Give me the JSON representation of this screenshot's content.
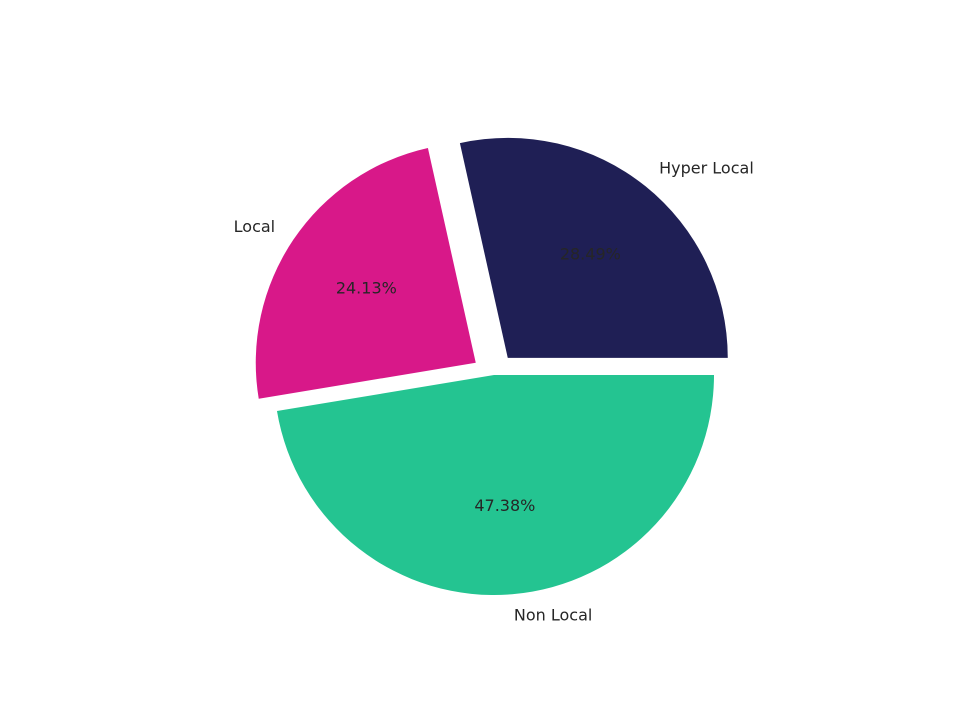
{
  "chart_data": {
    "type": "pie",
    "title": "",
    "categories": [
      "Hyper Local",
      "Local",
      "Non Local"
    ],
    "values": [
      28.49,
      24.13,
      47.38
    ],
    "value_labels": [
      "28.49%",
      "24.13%",
      "47.38%"
    ],
    "colors": [
      "#1f1f55",
      "#d81889",
      "#24c491"
    ],
    "exploded": [
      true,
      true,
      false
    ],
    "start_angle_deg": 0,
    "direction": "counterclockwise",
    "legend": "none"
  }
}
